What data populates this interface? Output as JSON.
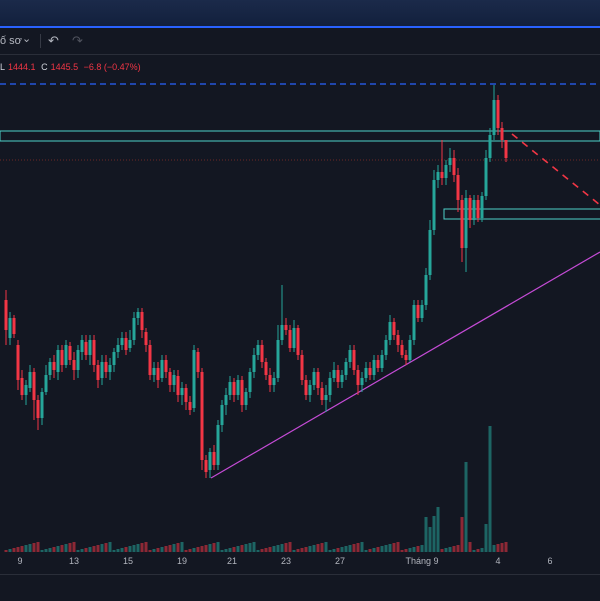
{
  "toolbar": {
    "chart_type_label": "ố sơ",
    "chevron_glyph": "⌄",
    "undo_glyph": "↶",
    "redo_glyph": "↷"
  },
  "legend": {
    "low_label": "L",
    "low_value": "1444.1",
    "close_label": "C",
    "close_value": "1445.5",
    "change": "−6.8 (−0.47%)"
  },
  "time_axis": [
    "9",
    "13",
    "15",
    "19",
    "21",
    "23",
    "27",
    "Tháng 9",
    "4",
    "6"
  ],
  "colors": {
    "up": "#26a69a",
    "down": "#f23645",
    "background": "#131722",
    "trendline": "#c54bd6",
    "zone": "#4dd0c8",
    "alert_line": "#2962ff"
  },
  "chart_data": {
    "type": "candlestick",
    "annotations": [
      "horizontal dashed price line at top",
      "rectangle zone near top",
      "rectangle zone at right",
      "rising trendline",
      "projected dashed downtrend",
      "dotted horizontal price line"
    ],
    "volume_shown": true,
    "candles": [
      [
        6,
        300,
        330,
        290,
        345
      ],
      [
        10,
        338,
        318,
        312,
        345
      ],
      [
        14,
        318,
        334,
        315,
        338
      ],
      [
        18,
        345,
        380,
        340,
        390
      ],
      [
        22,
        378,
        395,
        370,
        400
      ],
      [
        26,
        395,
        385,
        380,
        405
      ],
      [
        30,
        388,
        372,
        365,
        392
      ],
      [
        34,
        372,
        400,
        368,
        420
      ],
      [
        38,
        400,
        418,
        395,
        430
      ],
      [
        42,
        418,
        392,
        388,
        425
      ],
      [
        46,
        392,
        375,
        365,
        395
      ],
      [
        50,
        375,
        362,
        358,
        380
      ],
      [
        54,
        362,
        370,
        355,
        378
      ],
      [
        58,
        372,
        350,
        345,
        380
      ],
      [
        62,
        350,
        365,
        345,
        372
      ],
      [
        66,
        365,
        345,
        340,
        368
      ],
      [
        70,
        346,
        360,
        342,
        365
      ],
      [
        74,
        360,
        370,
        352,
        380
      ],
      [
        78,
        370,
        350,
        345,
        378
      ],
      [
        82,
        352,
        340,
        335,
        360
      ],
      [
        86,
        342,
        355,
        335,
        360
      ],
      [
        90,
        355,
        340,
        335,
        365
      ],
      [
        94,
        340,
        365,
        335,
        372
      ],
      [
        98,
        365,
        380,
        360,
        388
      ],
      [
        102,
        378,
        362,
        355,
        385
      ],
      [
        106,
        362,
        372,
        355,
        378
      ],
      [
        110,
        372,
        365,
        358,
        380
      ],
      [
        114,
        365,
        352,
        348,
        372
      ],
      [
        118,
        352,
        345,
        338,
        358
      ],
      [
        122,
        345,
        338,
        332,
        350
      ],
      [
        126,
        338,
        350,
        332,
        355
      ],
      [
        130,
        348,
        340,
        330,
        352
      ],
      [
        134,
        340,
        318,
        312,
        345
      ],
      [
        138,
        318,
        312,
        308,
        325
      ],
      [
        142,
        312,
        330,
        308,
        338
      ],
      [
        146,
        332,
        345,
        328,
        352
      ],
      [
        150,
        345,
        375,
        340,
        380
      ],
      [
        154,
        375,
        368,
        362,
        382
      ],
      [
        158,
        368,
        380,
        362,
        388
      ],
      [
        162,
        378,
        360,
        355,
        382
      ],
      [
        166,
        360,
        372,
        355,
        378
      ],
      [
        170,
        372,
        385,
        368,
        392
      ],
      [
        174,
        385,
        375,
        370,
        392
      ],
      [
        178,
        376,
        395,
        370,
        402
      ],
      [
        182,
        395,
        388,
        382,
        405
      ],
      [
        186,
        388,
        402,
        384,
        410
      ],
      [
        190,
        402,
        410,
        396,
        415
      ],
      [
        194,
        408,
        350,
        345,
        412
      ],
      [
        198,
        352,
        372,
        348,
        378
      ],
      [
        202,
        372,
        460,
        368,
        470
      ],
      [
        206,
        460,
        472,
        455,
        478
      ],
      [
        210,
        470,
        452,
        448,
        478
      ],
      [
        214,
        452,
        465,
        445,
        470
      ],
      [
        218,
        465,
        425,
        420,
        470
      ],
      [
        222,
        425,
        405,
        400,
        432
      ],
      [
        226,
        405,
        395,
        388,
        415
      ],
      [
        230,
        395,
        382,
        376,
        400
      ],
      [
        234,
        382,
        395,
        378,
        402
      ],
      [
        238,
        395,
        380,
        375,
        400
      ],
      [
        242,
        380,
        405,
        376,
        412
      ],
      [
        246,
        405,
        392,
        388,
        410
      ],
      [
        250,
        392,
        372,
        368,
        398
      ],
      [
        254,
        372,
        355,
        348,
        378
      ],
      [
        258,
        355,
        345,
        340,
        360
      ],
      [
        262,
        345,
        362,
        340,
        368
      ],
      [
        266,
        362,
        375,
        358,
        380
      ],
      [
        270,
        375,
        385,
        368,
        392
      ],
      [
        274,
        385,
        378,
        372,
        392
      ],
      [
        278,
        378,
        340,
        325,
        382
      ],
      [
        282,
        340,
        325,
        285,
        345
      ],
      [
        286,
        325,
        330,
        318,
        335
      ],
      [
        290,
        330,
        348,
        325,
        352
      ],
      [
        294,
        348,
        328,
        320,
        352
      ],
      [
        298,
        328,
        355,
        325,
        360
      ],
      [
        302,
        355,
        380,
        350,
        385
      ],
      [
        306,
        380,
        395,
        375,
        400
      ],
      [
        310,
        395,
        385,
        380,
        402
      ],
      [
        314,
        385,
        372,
        368,
        390
      ],
      [
        318,
        372,
        388,
        368,
        395
      ],
      [
        322,
        388,
        400,
        382,
        405
      ],
      [
        326,
        400,
        395,
        385,
        412
      ],
      [
        330,
        395,
        378,
        372,
        402
      ],
      [
        334,
        378,
        370,
        362,
        382
      ],
      [
        338,
        370,
        382,
        365,
        388
      ],
      [
        342,
        382,
        375,
        370,
        388
      ],
      [
        346,
        375,
        362,
        358,
        380
      ],
      [
        350,
        362,
        350,
        345,
        368
      ],
      [
        354,
        350,
        370,
        345,
        375
      ],
      [
        358,
        370,
        385,
        365,
        395
      ],
      [
        362,
        385,
        378,
        372,
        392
      ],
      [
        366,
        378,
        368,
        362,
        382
      ],
      [
        370,
        368,
        375,
        362,
        380
      ],
      [
        374,
        375,
        360,
        355,
        380
      ],
      [
        378,
        360,
        368,
        355,
        372
      ],
      [
        382,
        368,
        355,
        350,
        372
      ],
      [
        386,
        355,
        340,
        335,
        360
      ],
      [
        390,
        340,
        322,
        315,
        345
      ],
      [
        394,
        322,
        335,
        318,
        340
      ],
      [
        398,
        335,
        345,
        330,
        352
      ],
      [
        402,
        345,
        355,
        340,
        358
      ],
      [
        406,
        355,
        360,
        350,
        365
      ],
      [
        410,
        360,
        340,
        335,
        362
      ],
      [
        414,
        340,
        305,
        300,
        345
      ],
      [
        418,
        305,
        318,
        300,
        322
      ],
      [
        422,
        318,
        305,
        300,
        322
      ],
      [
        426,
        305,
        275,
        268,
        310
      ],
      [
        430,
        275,
        230,
        220,
        280
      ],
      [
        434,
        230,
        180,
        170,
        235
      ],
      [
        438,
        180,
        172,
        165,
        188
      ],
      [
        442,
        172,
        178,
        140,
        185
      ],
      [
        446,
        178,
        165,
        160,
        185
      ],
      [
        450,
        165,
        158,
        148,
        172
      ],
      [
        454,
        158,
        175,
        150,
        182
      ],
      [
        458,
        175,
        200,
        168,
        212
      ],
      [
        462,
        200,
        248,
        195,
        262
      ],
      [
        466,
        248,
        198,
        190,
        272
      ],
      [
        470,
        198,
        220,
        195,
        228
      ],
      [
        474,
        220,
        200,
        195,
        225
      ],
      [
        478,
        200,
        218,
        195,
        222
      ],
      [
        482,
        218,
        196,
        192,
        222
      ],
      [
        486,
        196,
        158,
        150,
        200
      ],
      [
        490,
        158,
        135,
        128,
        162
      ],
      [
        494,
        135,
        100,
        85,
        140
      ],
      [
        498,
        100,
        128,
        95,
        135
      ],
      [
        502,
        128,
        140,
        122,
        148
      ],
      [
        506,
        140,
        158,
        140,
        162
      ]
    ],
    "volumes": []
  }
}
